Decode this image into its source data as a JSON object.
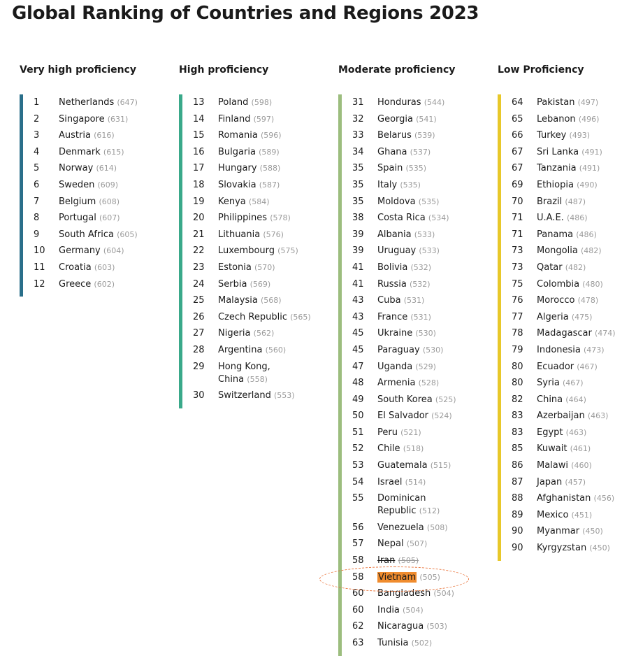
{
  "title": "Global Ranking of Countries and Regions 2023",
  "colors": {
    "very_high": "#2a6f8a",
    "high": "#3aa98a",
    "moderate": "#9cbd7e",
    "low": "#e8c82a",
    "highlight": "#f08c2e",
    "circle": "#e9733a"
  },
  "columns": [
    {
      "heading": "Very high proficiency",
      "rows": [
        {
          "rank": "1",
          "name": "Netherlands",
          "score": "(647)"
        },
        {
          "rank": "2",
          "name": "Singapore",
          "score": "(631)"
        },
        {
          "rank": "3",
          "name": "Austria",
          "score": "(616)"
        },
        {
          "rank": "4",
          "name": "Denmark",
          "score": "(615)"
        },
        {
          "rank": "5",
          "name": "Norway",
          "score": "(614)"
        },
        {
          "rank": "6",
          "name": "Sweden",
          "score": "(609)"
        },
        {
          "rank": "7",
          "name": "Belgium",
          "score": "(608)"
        },
        {
          "rank": "8",
          "name": "Portugal",
          "score": "(607)"
        },
        {
          "rank": "9",
          "name": "South Africa",
          "score": "(605)"
        },
        {
          "rank": "10",
          "name": "Germany",
          "score": "(604)"
        },
        {
          "rank": "11",
          "name": "Croatia",
          "score": "(603)"
        },
        {
          "rank": "12",
          "name": "Greece",
          "score": "(602)"
        }
      ]
    },
    {
      "heading": "High proficiency",
      "rows": [
        {
          "rank": "13",
          "name": "Poland",
          "score": "(598)"
        },
        {
          "rank": "14",
          "name": "Finland",
          "score": "(597)"
        },
        {
          "rank": "15",
          "name": "Romania",
          "score": "(596)"
        },
        {
          "rank": "16",
          "name": "Bulgaria",
          "score": "(589)"
        },
        {
          "rank": "17",
          "name": "Hungary",
          "score": "(588)"
        },
        {
          "rank": "18",
          "name": "Slovakia",
          "score": "(587)"
        },
        {
          "rank": "19",
          "name": "Kenya",
          "score": "(584)"
        },
        {
          "rank": "20",
          "name": "Philippines",
          "score": "(578)"
        },
        {
          "rank": "21",
          "name": "Lithuania",
          "score": "(576)"
        },
        {
          "rank": "22",
          "name": "Luxembourg",
          "score": "(575)"
        },
        {
          "rank": "23",
          "name": "Estonia",
          "score": "(570)"
        },
        {
          "rank": "24",
          "name": "Serbia",
          "score": "(569)"
        },
        {
          "rank": "25",
          "name": "Malaysia",
          "score": "(568)"
        },
        {
          "rank": "26",
          "name": "Czech Republic",
          "score": "(565)"
        },
        {
          "rank": "27",
          "name": "Nigeria",
          "score": "(562)"
        },
        {
          "rank": "28",
          "name": "Argentina",
          "score": "(560)"
        },
        {
          "rank": "29",
          "name": "Hong Kong, China",
          "score": "(558)",
          "wrap": true
        },
        {
          "rank": "30",
          "name": "Switzerland",
          "score": "(553)"
        }
      ]
    },
    {
      "heading": "Moderate proficiency",
      "rows": [
        {
          "rank": "31",
          "name": "Honduras",
          "score": "(544)"
        },
        {
          "rank": "32",
          "name": "Georgia",
          "score": "(541)"
        },
        {
          "rank": "33",
          "name": "Belarus",
          "score": "(539)"
        },
        {
          "rank": "34",
          "name": "Ghana",
          "score": "(537)"
        },
        {
          "rank": "35",
          "name": "Spain",
          "score": "(535)"
        },
        {
          "rank": "35",
          "name": "Italy",
          "score": "(535)"
        },
        {
          "rank": "35",
          "name": "Moldova",
          "score": "(535)"
        },
        {
          "rank": "38",
          "name": "Costa Rica",
          "score": "(534)"
        },
        {
          "rank": "39",
          "name": "Albania",
          "score": "(533)"
        },
        {
          "rank": "39",
          "name": "Uruguay",
          "score": "(533)"
        },
        {
          "rank": "41",
          "name": "Bolivia",
          "score": "(532)"
        },
        {
          "rank": "41",
          "name": "Russia",
          "score": "(532)"
        },
        {
          "rank": "43",
          "name": "Cuba",
          "score": "(531)"
        },
        {
          "rank": "43",
          "name": "France",
          "score": "(531)"
        },
        {
          "rank": "45",
          "name": "Ukraine",
          "score": "(530)"
        },
        {
          "rank": "45",
          "name": "Paraguay",
          "score": "(530)"
        },
        {
          "rank": "47",
          "name": "Uganda",
          "score": "(529)"
        },
        {
          "rank": "48",
          "name": "Armenia",
          "score": "(528)"
        },
        {
          "rank": "49",
          "name": "South Korea",
          "score": "(525)"
        },
        {
          "rank": "50",
          "name": "El Salvador",
          "score": "(524)"
        },
        {
          "rank": "51",
          "name": "Peru",
          "score": "(521)"
        },
        {
          "rank": "52",
          "name": "Chile",
          "score": "(518)"
        },
        {
          "rank": "53",
          "name": "Guatemala",
          "score": "(515)"
        },
        {
          "rank": "54",
          "name": "Israel",
          "score": "(514)"
        },
        {
          "rank": "55",
          "name": "Dominican Republic",
          "score": "(512)",
          "wrap": true
        },
        {
          "rank": "56",
          "name": "Venezuela",
          "score": "(508)"
        },
        {
          "rank": "57",
          "name": "Nepal",
          "score": "(507)"
        },
        {
          "rank": "58",
          "name": "Iran",
          "score": "(505)",
          "strike": true
        },
        {
          "rank": "58",
          "name": "Vietnam",
          "score": "(505)",
          "highlight": true
        },
        {
          "rank": "60",
          "name": "Bangladesh",
          "score": "(504)"
        },
        {
          "rank": "60",
          "name": "India",
          "score": "(504)"
        },
        {
          "rank": "62",
          "name": "Nicaragua",
          "score": "(503)"
        },
        {
          "rank": "63",
          "name": "Tunisia",
          "score": "(502)"
        }
      ]
    },
    {
      "heading": "Low Proficiency",
      "rows": [
        {
          "rank": "64",
          "name": "Pakistan",
          "score": "(497)"
        },
        {
          "rank": "65",
          "name": "Lebanon",
          "score": "(496)"
        },
        {
          "rank": "66",
          "name": "Turkey",
          "score": "(493)"
        },
        {
          "rank": "67",
          "name": "Sri Lanka",
          "score": "(491)"
        },
        {
          "rank": "67",
          "name": "Tanzania",
          "score": "(491)"
        },
        {
          "rank": "69",
          "name": "Ethiopia",
          "score": "(490)"
        },
        {
          "rank": "70",
          "name": "Brazil",
          "score": "(487)"
        },
        {
          "rank": "71",
          "name": "U.A.E.",
          "score": "(486)"
        },
        {
          "rank": "71",
          "name": "Panama",
          "score": "(486)"
        },
        {
          "rank": "73",
          "name": "Mongolia",
          "score": "(482)"
        },
        {
          "rank": "73",
          "name": "Qatar",
          "score": "(482)"
        },
        {
          "rank": "75",
          "name": "Colombia",
          "score": "(480)"
        },
        {
          "rank": "76",
          "name": "Morocco",
          "score": "(478)"
        },
        {
          "rank": "77",
          "name": "Algeria",
          "score": "(475)"
        },
        {
          "rank": "78",
          "name": "Madagascar",
          "score": "(474)"
        },
        {
          "rank": "79",
          "name": "Indonesia",
          "score": "(473)"
        },
        {
          "rank": "80",
          "name": "Ecuador",
          "score": "(467)"
        },
        {
          "rank": "80",
          "name": "Syria",
          "score": "(467)"
        },
        {
          "rank": "82",
          "name": "China",
          "score": "(464)"
        },
        {
          "rank": "83",
          "name": "Azerbaijan",
          "score": "(463)"
        },
        {
          "rank": "83",
          "name": "Egypt",
          "score": "(463)"
        },
        {
          "rank": "85",
          "name": "Kuwait",
          "score": "(461)"
        },
        {
          "rank": "86",
          "name": "Malawi",
          "score": "(460)"
        },
        {
          "rank": "87",
          "name": "Japan",
          "score": "(457)"
        },
        {
          "rank": "88",
          "name": "Afghanistan",
          "score": "(456)"
        },
        {
          "rank": "89",
          "name": "Mexico",
          "score": "(451)"
        },
        {
          "rank": "90",
          "name": "Myanmar",
          "score": "(450)"
        },
        {
          "rank": "90",
          "name": "Kyrgyzstan",
          "score": "(450)"
        }
      ]
    }
  ]
}
